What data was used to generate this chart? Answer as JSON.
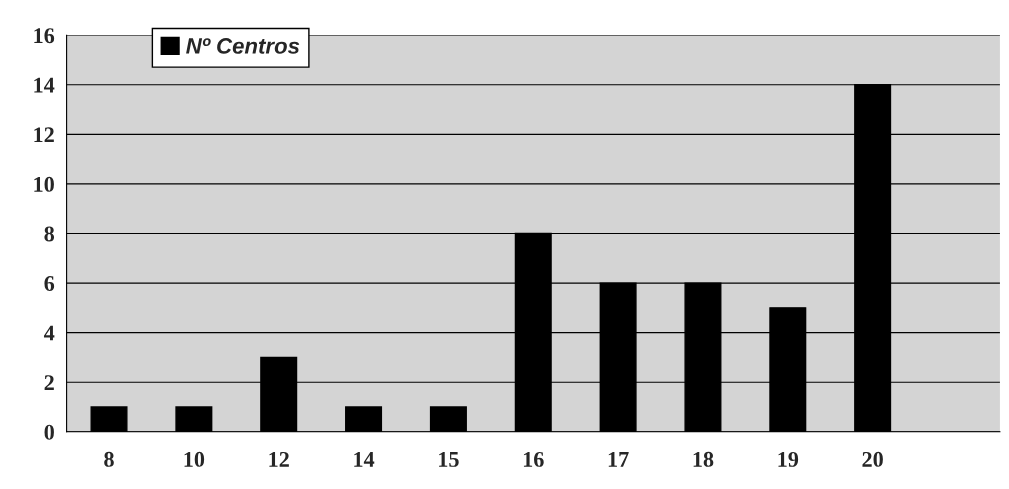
{
  "chart_data": {
    "type": "bar",
    "categories": [
      "8",
      "10",
      "12",
      "14",
      "15",
      "16",
      "17",
      "18",
      "19",
      "20",
      null
    ],
    "series": [
      {
        "name": "Nº Centros",
        "color": "#000000",
        "values": [
          1,
          1,
          3,
          1,
          1,
          8,
          6,
          6,
          5,
          14,
          null
        ]
      }
    ],
    "ylim": [
      0,
      16
    ],
    "yticks": [
      0,
      2,
      4,
      6,
      8,
      10,
      12,
      14,
      16
    ],
    "grid": "y",
    "legend": "top left"
  }
}
